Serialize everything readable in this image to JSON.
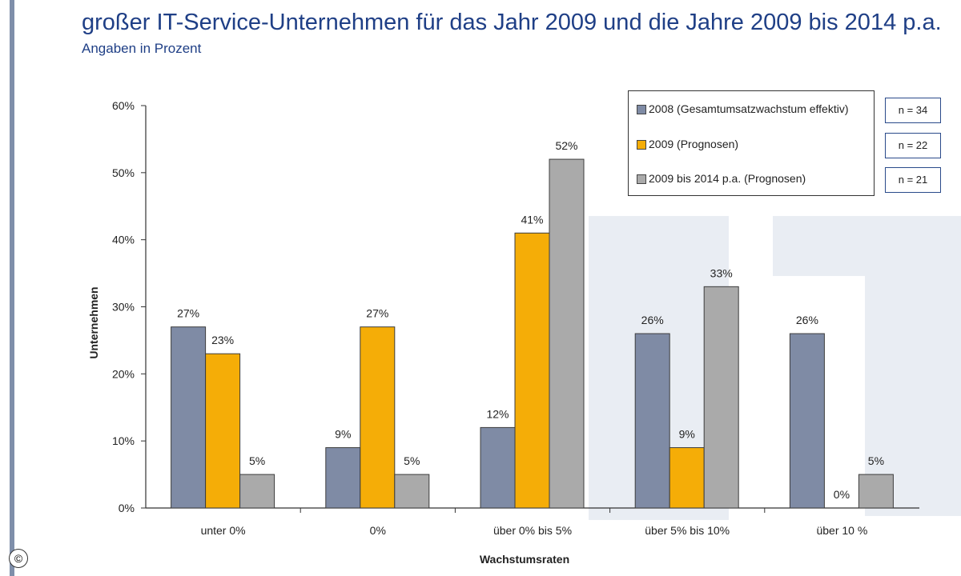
{
  "title": "großer IT-Service-Unternehmen für das Jahr 2009 und die Jahre 2009 bis 2014 p.a.",
  "subtitle": "Angaben in Prozent",
  "copyright": "©",
  "colors": {
    "s2008": "#7f8ba5",
    "s2009": "#f5ad07",
    "s2009_2014": "#aaaaaa",
    "title": "#1f3f86"
  },
  "legend": {
    "items": [
      {
        "label": "2008 (Gesamtumsatzwachstum effektiv)",
        "n": "n = 34"
      },
      {
        "label": "2009 (Prognosen)",
        "n": "n = 22"
      },
      {
        "label": "2009 bis 2014 p.a. (Prognosen)",
        "n": "n = 21"
      }
    ]
  },
  "chart_data": {
    "type": "bar",
    "xlabel": "Wachstumsraten",
    "ylabel": "Unternehmen",
    "ylim": [
      0,
      60
    ],
    "yticks": [
      "0%",
      "10%",
      "20%",
      "30%",
      "40%",
      "50%",
      "60%"
    ],
    "categories": [
      "unter 0%",
      "0%",
      "über 0% bis 5%",
      "über 5% bis 10%",
      "über 10 %"
    ],
    "series": [
      {
        "name": "2008 (Gesamtumsatzwachstum effektiv)",
        "values": [
          27,
          9,
          12,
          26,
          26
        ],
        "labels": [
          "27%",
          "9%",
          "12%",
          "26%",
          "26%"
        ]
      },
      {
        "name": "2009 (Prognosen)",
        "values": [
          23,
          27,
          41,
          9,
          0
        ],
        "labels": [
          "23%",
          "27%",
          "41%",
          "9%",
          "0%"
        ]
      },
      {
        "name": "2009 bis 2014 p.a. (Prognosen)",
        "values": [
          5,
          5,
          52,
          33,
          5
        ],
        "labels": [
          "5%",
          "5%",
          "52%",
          "33%",
          "5%"
        ]
      }
    ]
  }
}
